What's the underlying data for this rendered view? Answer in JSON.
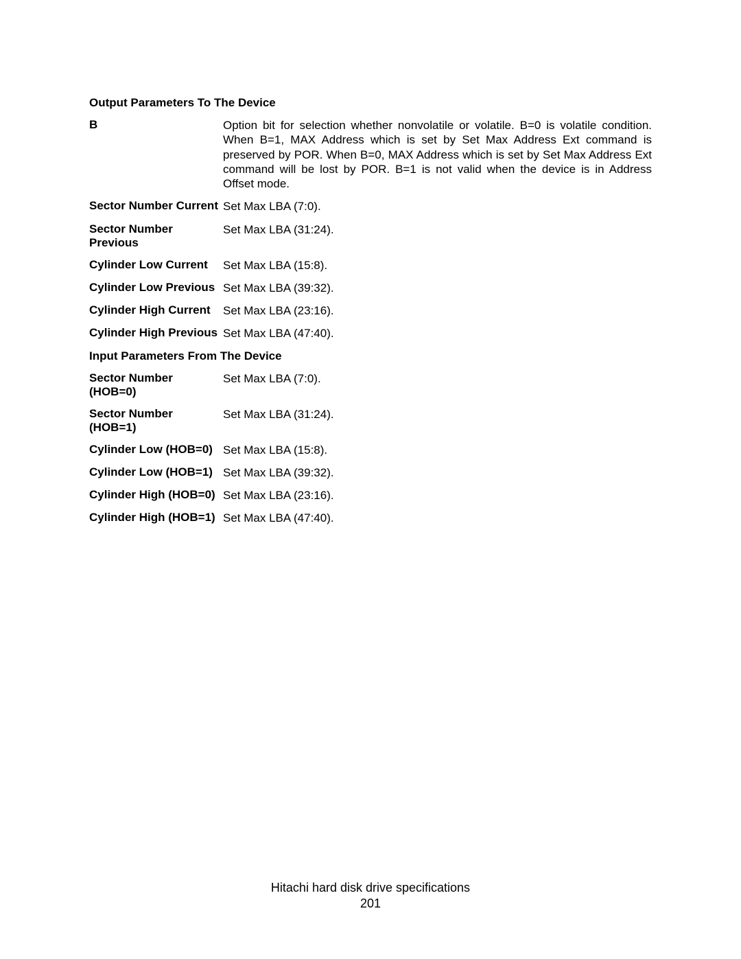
{
  "headings": {
    "output_params": "Output Parameters To The Device",
    "input_params": "Input Parameters From The Device"
  },
  "output_rows": [
    {
      "label": "B",
      "value": "Option bit for selection whether nonvolatile or volatile. B=0 is volatile condition. When B=1, MAX Address which is set by Set Max Address Ext command is preserved by POR. When B=0, MAX Address which is set by Set Max Address Ext command will be lost by POR. B=1 is not valid when the device is in Address Offset mode."
    },
    {
      "label": "Sector Number Current",
      "value": "Set Max LBA (7:0)."
    },
    {
      "label": "Sector Number Previous",
      "value": "Set Max LBA (31:24)."
    },
    {
      "label": "Cylinder Low Current",
      "value": "Set Max LBA (15:8)."
    },
    {
      "label": "Cylinder Low Previous",
      "value": "Set Max LBA (39:32)."
    },
    {
      "label": "Cylinder High Current",
      "value": "Set Max LBA (23:16)."
    },
    {
      "label": "Cylinder High Previous",
      "value": "Set Max LBA (47:40)."
    }
  ],
  "input_rows": [
    {
      "label": "Sector Number (HOB=0)",
      "value": "Set Max LBA (7:0)."
    },
    {
      "label": "Sector Number (HOB=1)",
      "value": "Set Max LBA (31:24)."
    },
    {
      "label": "Cylinder Low (HOB=0)",
      "value": "Set Max LBA (15:8)."
    },
    {
      "label": "Cylinder Low (HOB=1)",
      "value": "Set Max LBA (39:32)."
    },
    {
      "label": "Cylinder High (HOB=0)",
      "value": "Set Max LBA (23:16)."
    },
    {
      "label": "Cylinder High (HOB=1)",
      "value": "Set Max LBA (47:40)."
    }
  ],
  "footer": {
    "title": "Hitachi hard disk drive specifications",
    "page": "201"
  }
}
